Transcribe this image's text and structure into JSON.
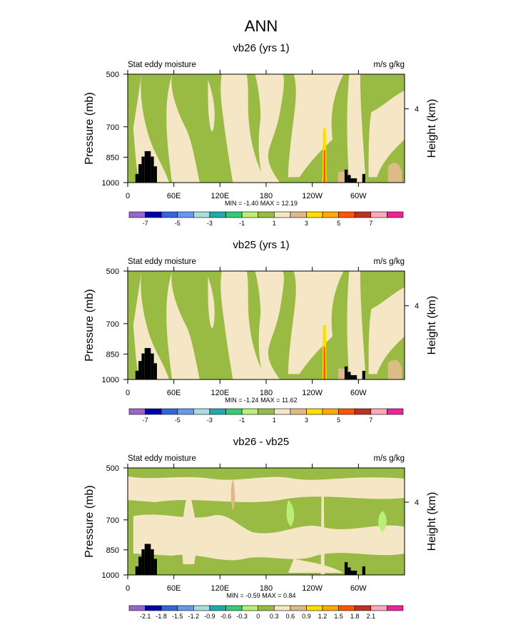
{
  "figure_title": "ANN",
  "chart_data": [
    {
      "type": "heatmap",
      "title": "vb26 (yrs 1)",
      "left_label": "Stat eddy moisture",
      "right_label": "m/s g/kg",
      "ylabel": "Pressure (mb)",
      "ylabel_right": "Height (km)",
      "xlabel": "",
      "x_ticks": [
        "0",
        "60E",
        "120E",
        "180",
        "120W",
        "60W"
      ],
      "y_ticks": [
        "500",
        "700",
        "850",
        "1000"
      ],
      "y_right_ticks": [
        "4"
      ],
      "xlim": [
        0,
        360
      ],
      "ylim": [
        1000,
        500
      ],
      "stats": "MIN =  -1.40  MAX =  12.19",
      "colorbar": {
        "boundary_labels": [
          "-7",
          "-5",
          "-3",
          "-1",
          "1",
          "3",
          "5",
          "7"
        ],
        "colors": [
          "#9966cc",
          "#0000aa",
          "#3366dd",
          "#6699ee",
          "#aadddd",
          "#22aaaa",
          "#33cc77",
          "#bbee77",
          "#99bb44",
          "#f5e6c6",
          "#ddbb88",
          "#ffdd00",
          "#ffaa00",
          "#ff5500",
          "#bb3322",
          "#ffaabb",
          "#ee2299"
        ]
      }
    },
    {
      "type": "heatmap",
      "title": "vb25 (yrs 1)",
      "left_label": "Stat eddy moisture",
      "right_label": "m/s g/kg",
      "ylabel": "Pressure (mb)",
      "ylabel_right": "Height (km)",
      "xlabel": "",
      "x_ticks": [
        "0",
        "60E",
        "120E",
        "180",
        "120W",
        "60W"
      ],
      "y_ticks": [
        "500",
        "700",
        "850",
        "1000"
      ],
      "y_right_ticks": [
        "4"
      ],
      "xlim": [
        0,
        360
      ],
      "ylim": [
        1000,
        500
      ],
      "stats": "MIN =  -1.24  MAX =  11.62",
      "colorbar": {
        "boundary_labels": [
          "-7",
          "-5",
          "-3",
          "-1",
          "1",
          "3",
          "5",
          "7"
        ],
        "colors": [
          "#9966cc",
          "#0000aa",
          "#3366dd",
          "#6699ee",
          "#aadddd",
          "#22aaaa",
          "#33cc77",
          "#bbee77",
          "#99bb44",
          "#f5e6c6",
          "#ddbb88",
          "#ffdd00",
          "#ffaa00",
          "#ff5500",
          "#bb3322",
          "#ffaabb",
          "#ee2299"
        ]
      }
    },
    {
      "type": "heatmap",
      "title": "vb26 - vb25",
      "left_label": "Stat eddy moisture",
      "right_label": "m/s g/kg",
      "ylabel": "Pressure (mb)",
      "ylabel_right": "Height (km)",
      "xlabel": "",
      "x_ticks": [
        "0",
        "60E",
        "120E",
        "180",
        "120W",
        "60W"
      ],
      "y_ticks": [
        "500",
        "700",
        "850",
        "1000"
      ],
      "y_right_ticks": [
        "4"
      ],
      "xlim": [
        0,
        360
      ],
      "ylim": [
        1000,
        500
      ],
      "stats": "MIN =  -0.59  MAX =   0.84",
      "colorbar": {
        "boundary_labels": [
          "-2.1",
          "-1.8",
          "-1.5",
          "-1.2",
          "-0.9",
          "-0.6",
          "-0.3",
          "0",
          "0.3",
          "0.6",
          "0.9",
          "1.2",
          "1.5",
          "1.8",
          "2.1"
        ],
        "colors": [
          "#9966cc",
          "#0000aa",
          "#3366dd",
          "#6699ee",
          "#aadddd",
          "#22aaaa",
          "#33cc77",
          "#bbee77",
          "#99bb44",
          "#f5e6c6",
          "#ddbb88",
          "#ffdd00",
          "#ffaa00",
          "#ff5500",
          "#bb3322",
          "#ffaabb",
          "#ee2299"
        ]
      }
    }
  ]
}
